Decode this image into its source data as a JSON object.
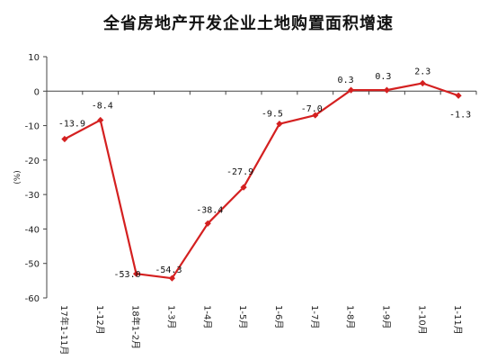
{
  "chart_data": {
    "type": "line",
    "title": "全省房地产开发企业土地购置面积增速",
    "ylabel": "(%)",
    "xlabel": "",
    "categories": [
      "17年1-11月",
      "1-12月",
      "18年1-2月",
      "1-3月",
      "1-4月",
      "1-5月",
      "1-6月",
      "1-7月",
      "1-8月",
      "1-9月",
      "1-10月",
      "1-11月"
    ],
    "series": [
      {
        "values": [
          -13.9,
          -8.4,
          -53.0,
          -54.3,
          -38.4,
          -27.9,
          -9.5,
          -7.0,
          0.3,
          0.3,
          2.3,
          -1.3
        ],
        "labels": [
          "-13.9",
          "-8.4",
          "-53.0",
          "-54.3",
          "-38.4",
          "-27.9",
          "-9.5",
          "-7.0",
          "0.3",
          "0.3",
          "2.3",
          "-1.3"
        ]
      }
    ],
    "ylim": [
      -60,
      10
    ],
    "yticks": [
      10,
      0,
      -10,
      -20,
      -30,
      -40,
      -50,
      -60
    ],
    "grid": false,
    "line_color": "#d42020"
  }
}
